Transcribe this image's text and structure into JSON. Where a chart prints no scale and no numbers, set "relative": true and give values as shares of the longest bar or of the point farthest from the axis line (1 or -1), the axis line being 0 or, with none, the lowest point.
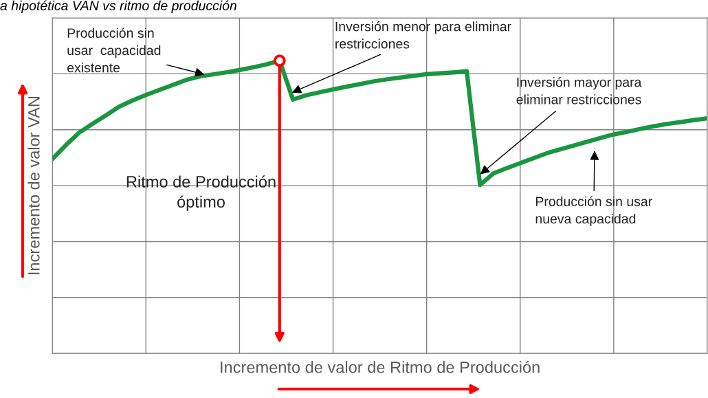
{
  "chart_data": {
    "type": "line",
    "relative": true,
    "title": "a hipotética VAN vs ritmo de producción",
    "xlabel": "Incremento de valor de Ritmo de Producción",
    "ylabel": "Incremento de valor VAN",
    "categories": [
      null,
      null,
      null,
      null,
      null,
      null,
      null,
      null,
      null,
      null,
      null,
      null,
      null,
      null,
      null,
      null,
      null,
      null,
      null,
      null,
      null,
      null,
      null,
      null,
      null,
      null,
      null,
      null,
      null,
      null,
      null,
      null,
      null,
      null,
      null,
      null,
      null,
      null,
      null,
      null,
      null,
      null,
      null,
      null,
      null,
      null,
      null,
      null,
      null,
      null
    ],
    "series": [
      {
        "color": "#1a9641",
        "values": [
          0.664,
          0.711,
          0.754,
          0.784,
          0.813,
          0.843,
          0.864,
          0.883,
          0.9,
          0.917,
          0.934,
          0.946,
          0.953,
          0.96,
          0.968,
          0.977,
          0.987,
          1,
          0.867,
          0.882,
          0.892,
          0.902,
          0.911,
          0.92,
          0.929,
          0.936,
          0.942,
          0.948,
          0.954,
          0.957,
          0.96,
          0.964,
          0.575,
          0.615,
          0.633,
          0.65,
          0.667,
          0.684,
          0.697,
          0.71,
          0.723,
          0.736,
          0.748,
          0.757,
          0.767,
          0.776,
          0.784,
          0.79,
          0.797,
          0.803
        ]
      }
    ],
    "annotations": [
      "Producción sin\nusar  capacidad\nexistente",
      "Inversión menor para eliminar\nrestricciones",
      "Inversión mayor para\neliminar restricciones",
      "Producción sin usar\nnueva capacidad",
      "Ritmo de Producción\nóptimo"
    ],
    "grid": true,
    "tick_labels": false
  }
}
